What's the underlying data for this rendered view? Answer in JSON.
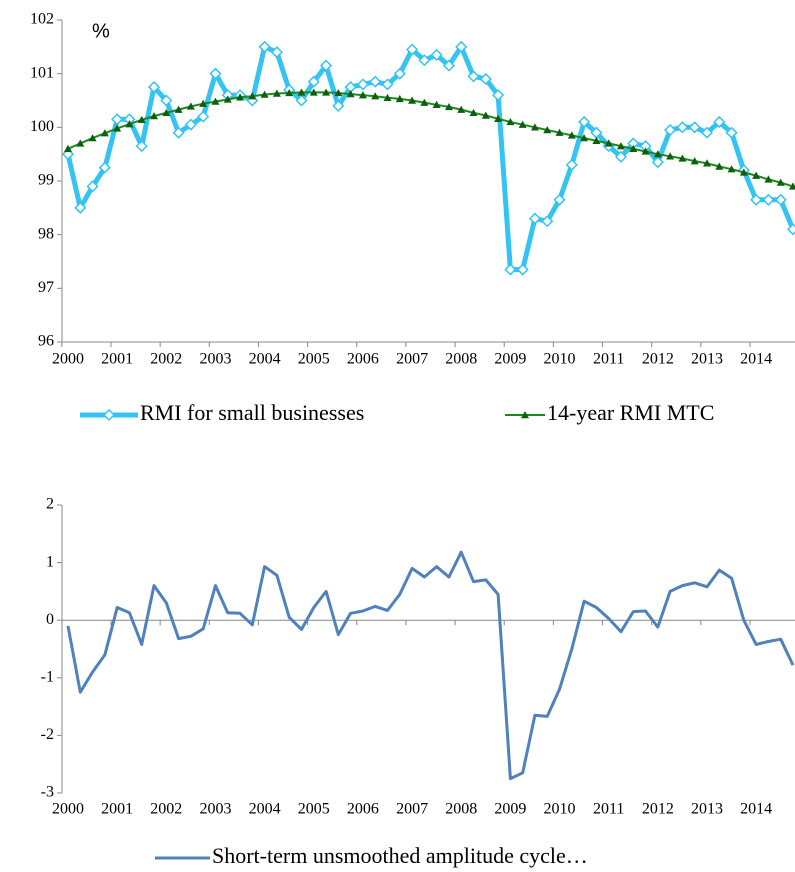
{
  "chart_data": [
    {
      "type": "line",
      "y_unit": "%",
      "categories": [
        "2000",
        null,
        null,
        null,
        "2001",
        null,
        null,
        null,
        "2002",
        null,
        null,
        null,
        "2003",
        null,
        null,
        null,
        "2004",
        null,
        null,
        null,
        "2005",
        null,
        null,
        null,
        "2006",
        null,
        null,
        null,
        "2007",
        null,
        null,
        null,
        "2008",
        null,
        null,
        null,
        "2009",
        null,
        null,
        null,
        "2010",
        null,
        null,
        null,
        "2011",
        null,
        null,
        null,
        "2012",
        null,
        null,
        null,
        "2013",
        null,
        null,
        null,
        "2014",
        null,
        null,
        null
      ],
      "ylim": [
        96,
        102
      ],
      "yticks": [
        96,
        97,
        98,
        99,
        100,
        101,
        102
      ],
      "series": [
        {
          "name": "RMI for small businesses",
          "color": "#33c3f5",
          "marker": "diamond",
          "values": [
            99.5,
            98.5,
            98.9,
            99.25,
            100.15,
            100.15,
            99.65,
            100.75,
            100.5,
            99.9,
            100.05,
            100.2,
            101.0,
            100.6,
            100.6,
            100.5,
            101.5,
            101.4,
            100.7,
            100.5,
            100.85,
            101.15,
            100.4,
            100.75,
            100.8,
            100.85,
            100.8,
            101.0,
            101.45,
            101.25,
            101.35,
            101.15,
            101.5,
            100.95,
            100.9,
            100.6,
            97.35,
            97.35,
            98.3,
            98.25,
            98.65,
            99.3,
            100.1,
            99.9,
            99.65,
            99.45,
            99.7,
            99.65,
            99.35,
            99.95,
            100.0,
            100.0,
            99.9,
            100.1,
            99.9,
            99.2,
            98.65,
            98.65,
            98.65,
            98.1
          ]
        },
        {
          "name": "14-year RMI MTC",
          "color": "#1e8a1e",
          "marker": "triangle",
          "values": [
            99.6,
            99.7,
            99.8,
            99.89,
            99.98,
            100.06,
            100.14,
            100.21,
            100.27,
            100.33,
            100.39,
            100.44,
            100.48,
            100.52,
            100.56,
            100.58,
            100.61,
            100.63,
            100.64,
            100.65,
            100.65,
            100.65,
            100.64,
            100.62,
            100.6,
            100.58,
            100.55,
            100.53,
            100.5,
            100.46,
            100.42,
            100.38,
            100.33,
            100.27,
            100.22,
            100.16,
            100.1,
            100.05,
            100.0,
            99.95,
            99.9,
            99.85,
            99.8,
            99.75,
            99.7,
            99.65,
            99.6,
            99.55,
            99.5,
            99.46,
            99.42,
            99.37,
            99.33,
            99.27,
            99.22,
            99.16,
            99.1,
            99.03,
            98.97,
            98.9
          ]
        }
      ]
    },
    {
      "type": "line",
      "categories": [
        "2000",
        null,
        null,
        null,
        "2001",
        null,
        null,
        null,
        "2002",
        null,
        null,
        null,
        "2003",
        null,
        null,
        null,
        "2004",
        null,
        null,
        null,
        "2005",
        null,
        null,
        null,
        "2006",
        null,
        null,
        null,
        "2007",
        null,
        null,
        null,
        "2008",
        null,
        null,
        null,
        "2009",
        null,
        null,
        null,
        "2010",
        null,
        null,
        null,
        "2011",
        null,
        null,
        null,
        "2012",
        null,
        null,
        null,
        "2013",
        null,
        null,
        null,
        "2014",
        null,
        null,
        null
      ],
      "ylim": [
        -3,
        2
      ],
      "yticks": [
        -3,
        -2,
        -1,
        0,
        1,
        2
      ],
      "series": [
        {
          "name": "Short-term unsmoothed amplitude cycle…",
          "color": "#4f81bd",
          "values": [
            -0.1,
            -1.25,
            -0.9,
            -0.6,
            0.22,
            0.13,
            -0.42,
            0.6,
            0.3,
            -0.32,
            -0.28,
            -0.15,
            0.6,
            0.13,
            0.12,
            -0.08,
            0.93,
            0.78,
            0.05,
            -0.16,
            0.22,
            0.5,
            -0.25,
            0.12,
            0.16,
            0.24,
            0.17,
            0.45,
            0.9,
            0.75,
            0.93,
            0.75,
            1.18,
            0.67,
            0.7,
            0.45,
            -2.75,
            -2.65,
            -1.65,
            -1.67,
            -1.2,
            -0.5,
            0.33,
            0.22,
            0.03,
            -0.2,
            0.15,
            0.16,
            -0.12,
            0.5,
            0.6,
            0.65,
            0.58,
            0.87,
            0.73,
            0.0,
            -0.42,
            -0.37,
            -0.33,
            -0.78
          ]
        }
      ]
    }
  ]
}
